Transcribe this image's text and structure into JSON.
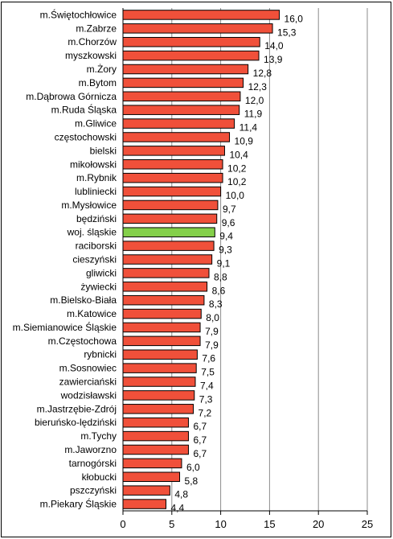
{
  "chart_data": {
    "type": "bar",
    "orientation": "horizontal",
    "categories": [
      "m.Świętochłowice",
      "m.Zabrze",
      "m.Chorzów",
      "myszkowski",
      "m.Żory",
      "m.Bytom",
      "m.Dąbrowa Górnicza",
      "m.Ruda Śląska",
      "m.Gliwice",
      "częstochowski",
      "bielski",
      "mikołowski",
      "m.Rybnik",
      "lubliniecki",
      "m.Mysłowice",
      "będziński",
      "woj. śląskie",
      "raciborski",
      "cieszyński",
      "gliwicki",
      "żywiecki",
      "m.Bielsko-Biała",
      "m.Katowice",
      "m.Siemianowice Śląskie",
      "m.Częstochowa",
      "rybnicki",
      "m.Sosnowiec",
      "zawierciański",
      "wodzisławski",
      "m.Jastrzębie-Zdrój",
      "bieruńsko-lędziński",
      "m.Tychy",
      "m.Jaworzno",
      "tarnogórski",
      "kłobucki",
      "pszczyński",
      "m.Piekary Śląskie"
    ],
    "values": [
      16.0,
      15.3,
      14.0,
      13.9,
      12.8,
      12.3,
      12.0,
      11.9,
      11.4,
      10.9,
      10.4,
      10.2,
      10.2,
      10.0,
      9.7,
      9.6,
      9.4,
      9.3,
      9.1,
      8.8,
      8.6,
      8.3,
      8.0,
      7.9,
      7.9,
      7.6,
      7.5,
      7.4,
      7.3,
      7.2,
      6.7,
      6.7,
      6.7,
      6.0,
      5.8,
      4.8,
      4.4
    ],
    "value_labels": [
      "16,0",
      "15,3",
      "14,0",
      "13,9",
      "12,8",
      "12,3",
      "12,0",
      "11,9",
      "11,4",
      "10,9",
      "10,4",
      "10,2",
      "10,2",
      "10,0",
      "9,7",
      "9,6",
      "9,4",
      "9,3",
      "9,1",
      "8,8",
      "8,6",
      "8,3",
      "8,0",
      "7,9",
      "7,9",
      "7,6",
      "7,5",
      "7,4",
      "7,3",
      "7,2",
      "6,7",
      "6,7",
      "6,7",
      "6,0",
      "5,8",
      "4,8",
      "4,4"
    ],
    "highlight_category": "woj. śląskie",
    "xlim": [
      0,
      25
    ],
    "xticks": [
      0,
      5,
      10,
      15,
      20,
      25
    ],
    "xtick_labels": [
      "0",
      "5",
      "10",
      "15",
      "20",
      "25"
    ],
    "grid": "vertical",
    "colors": {
      "bar": "#f0503a",
      "highlight": "#84d04a",
      "bar_edge": "#000000",
      "grid": "#8c8c8c",
      "axis": "#000000"
    }
  }
}
